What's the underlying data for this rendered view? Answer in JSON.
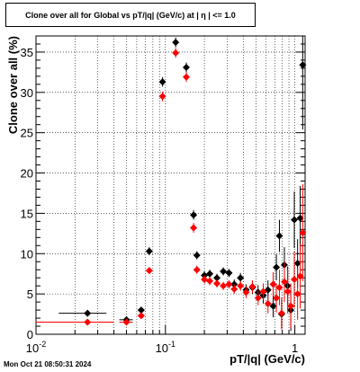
{
  "title": "Clone  over all for Global vs pT/|q| (GeV/c) at |  η  | <= 1.0",
  "timestamp": "Mon Oct 21 08:50:31 2024",
  "chart_data": {
    "type": "scatter",
    "title": "Clone  over all for Global vs pT/|q| (GeV/c) at |  η  | <= 1.0",
    "xlabel": "pT/|q| (GeV/c)",
    "ylabel": "Clone  over all (%)",
    "xscale": "log",
    "xlim": [
      0.01,
      1.2
    ],
    "ylim": [
      0,
      37
    ],
    "grid": true,
    "y_ticks": [
      0,
      5,
      10,
      15,
      20,
      25,
      30,
      35
    ],
    "x_tick_labels": [
      "10^-2",
      "10^-1",
      "1"
    ],
    "colors": {
      "series_1": "#000000",
      "series_2": "#ff0000"
    },
    "series": [
      {
        "color": "#000000",
        "points": [
          {
            "x": 0.025,
            "y": 2.6,
            "xerr": [
              0.015,
              0.035
            ],
            "yerr": 0.4
          },
          {
            "x": 0.05,
            "y": 1.8,
            "xerr": [
              0.044,
              0.056
            ],
            "yerr": 0.4
          },
          {
            "x": 0.065,
            "y": 3.0,
            "xerr": [
              0.061,
              0.069
            ],
            "yerr": 0.4
          },
          {
            "x": 0.075,
            "y": 10.3,
            "yerr": 0.5
          },
          {
            "x": 0.095,
            "y": 31.3,
            "yerr": 0.6
          },
          {
            "x": 0.12,
            "y": 36.2,
            "yerr": 0.6
          },
          {
            "x": 0.145,
            "y": 33.1,
            "yerr": 0.6
          },
          {
            "x": 0.165,
            "y": 14.8,
            "yerr": 0.6
          },
          {
            "x": 0.175,
            "y": 9.8,
            "yerr": 0.5
          },
          {
            "x": 0.2,
            "y": 7.3,
            "yerr": 0.5
          },
          {
            "x": 0.22,
            "y": 7.5,
            "yerr": 0.5
          },
          {
            "x": 0.25,
            "y": 7.0,
            "yerr": 0.5
          },
          {
            "x": 0.28,
            "y": 7.8,
            "yerr": 0.5
          },
          {
            "x": 0.31,
            "y": 7.6,
            "yerr": 0.5
          },
          {
            "x": 0.34,
            "y": 6.2,
            "yerr": 0.6
          },
          {
            "x": 0.38,
            "y": 7.0,
            "yerr": 0.6
          },
          {
            "x": 0.42,
            "y": 5.5,
            "yerr": 0.7
          },
          {
            "x": 0.47,
            "y": 5.8,
            "yerr": 0.8
          },
          {
            "x": 0.52,
            "y": 5.2,
            "yerr": 0.9
          },
          {
            "x": 0.57,
            "y": 4.8,
            "yerr": 1.0
          },
          {
            "x": 0.62,
            "y": 5.5,
            "yerr": 1.2
          },
          {
            "x": 0.68,
            "y": 3.5,
            "yerr": 1.4
          },
          {
            "x": 0.72,
            "y": 8.3,
            "yerr": 1.6
          },
          {
            "x": 0.76,
            "y": 12.2,
            "yerr": 2.0
          },
          {
            "x": 0.79,
            "y": 2.5,
            "yerr": 1.8
          },
          {
            "x": 0.83,
            "y": 8.6,
            "yerr": 2.2
          },
          {
            "x": 0.88,
            "y": 6.0,
            "yerr": 2.4
          },
          {
            "x": 0.93,
            "y": 3.0,
            "yerr": 2.6
          },
          {
            "x": 0.99,
            "y": 14.2,
            "yerr": 3.5
          },
          {
            "x": 1.05,
            "y": 8.8,
            "yerr": 3.0
          },
          {
            "x": 1.1,
            "y": 14.4,
            "yerr": 4.0
          },
          {
            "x": 1.15,
            "y": 33.4,
            "yerr": 8.0
          }
        ]
      },
      {
        "color": "#ff0000",
        "points": [
          {
            "x": 0.025,
            "y": 1.5,
            "xerr": [
              0.01,
              0.04
            ],
            "yerr": 0.3
          },
          {
            "x": 0.05,
            "y": 1.5,
            "xerr": [
              0.044,
              0.056
            ],
            "yerr": 0.3
          },
          {
            "x": 0.065,
            "y": 2.3,
            "xerr": [
              0.061,
              0.069
            ],
            "yerr": 0.3
          },
          {
            "x": 0.075,
            "y": 7.9,
            "yerr": 0.4
          },
          {
            "x": 0.095,
            "y": 29.5,
            "yerr": 0.6
          },
          {
            "x": 0.12,
            "y": 34.9,
            "yerr": 0.6
          },
          {
            "x": 0.145,
            "y": 31.9,
            "yerr": 0.6
          },
          {
            "x": 0.165,
            "y": 13.2,
            "yerr": 0.6
          },
          {
            "x": 0.175,
            "y": 8.0,
            "yerr": 0.5
          },
          {
            "x": 0.2,
            "y": 6.8,
            "yerr": 0.5
          },
          {
            "x": 0.22,
            "y": 6.6,
            "yerr": 0.5
          },
          {
            "x": 0.25,
            "y": 6.3,
            "yerr": 0.5
          },
          {
            "x": 0.28,
            "y": 6.0,
            "yerr": 0.5
          },
          {
            "x": 0.31,
            "y": 6.2,
            "yerr": 0.5
          },
          {
            "x": 0.34,
            "y": 5.6,
            "yerr": 0.6
          },
          {
            "x": 0.38,
            "y": 6.0,
            "yerr": 0.6
          },
          {
            "x": 0.42,
            "y": 5.2,
            "yerr": 0.7
          },
          {
            "x": 0.47,
            "y": 5.9,
            "yerr": 0.8
          },
          {
            "x": 0.52,
            "y": 4.5,
            "yerr": 0.9
          },
          {
            "x": 0.57,
            "y": 5.3,
            "yerr": 1.0
          },
          {
            "x": 0.62,
            "y": 3.8,
            "yerr": 1.2
          },
          {
            "x": 0.68,
            "y": 6.2,
            "yerr": 1.5
          },
          {
            "x": 0.72,
            "y": 4.5,
            "yerr": 1.8
          },
          {
            "x": 0.76,
            "y": 5.8,
            "yerr": 2.2
          },
          {
            "x": 0.79,
            "y": 2.6,
            "yerr": 2.0
          },
          {
            "x": 0.83,
            "y": 6.5,
            "yerr": 2.5
          },
          {
            "x": 0.88,
            "y": 5.3,
            "yerr": 2.7
          },
          {
            "x": 0.93,
            "y": 3.5,
            "yerr": 2.8
          },
          {
            "x": 0.99,
            "y": 6.8,
            "yerr": 3.5
          },
          {
            "x": 1.05,
            "y": 5.0,
            "yerr": 3.2
          },
          {
            "x": 1.1,
            "y": 7.2,
            "yerr": 4.0
          },
          {
            "x": 1.15,
            "y": 12.6,
            "yerr": 6.0
          }
        ]
      }
    ]
  }
}
